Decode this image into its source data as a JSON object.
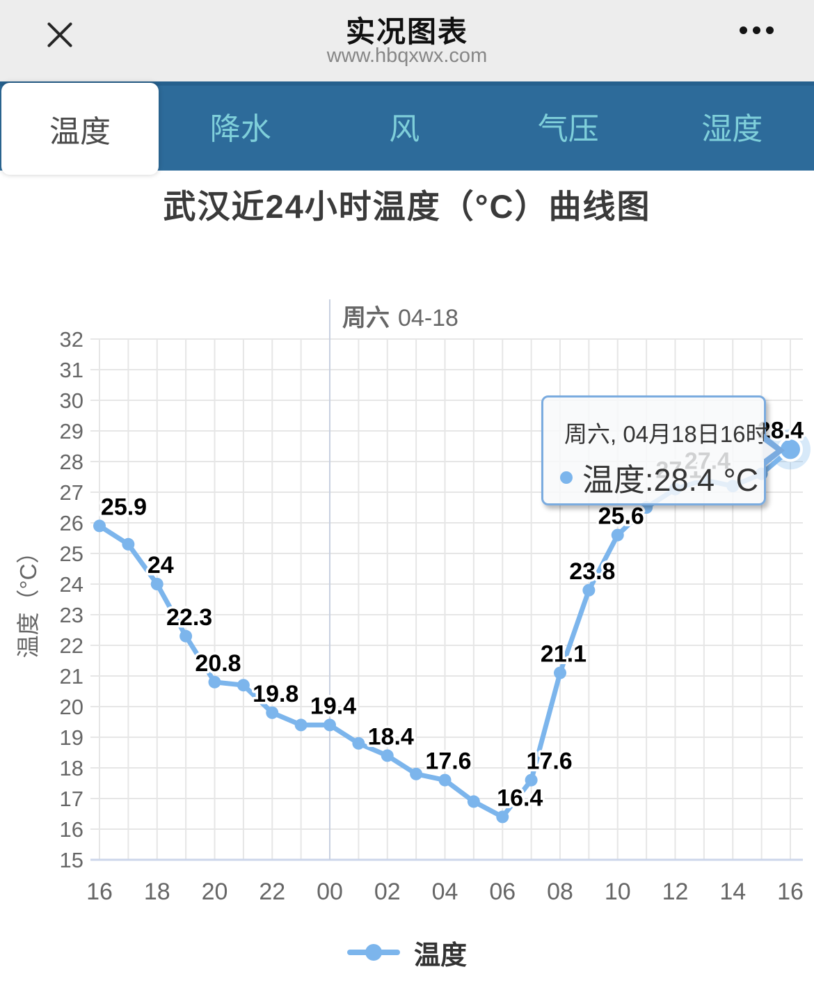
{
  "header": {
    "title": "实况图表",
    "url": "www.hbqxwx.com",
    "close_icon": "x",
    "menu_icon": "•••"
  },
  "tabs": [
    {
      "label": "温度",
      "active": true
    },
    {
      "label": "降水",
      "active": false
    },
    {
      "label": "风",
      "active": false
    },
    {
      "label": "气压",
      "active": false
    },
    {
      "label": "湿度",
      "active": false
    }
  ],
  "chart_title": "武汉近24小时温度（°C）曲线图",
  "chart_data": {
    "type": "line",
    "title": "武汉近24小时温度（°C）曲线图",
    "xlabel": "",
    "ylabel": "温度（°C）",
    "ylim": [
      15,
      32
    ],
    "y_tick_step": 1,
    "x": [
      "16",
      "17",
      "18",
      "19",
      "20",
      "21",
      "22",
      "23",
      "00",
      "01",
      "02",
      "03",
      "04",
      "05",
      "06",
      "07",
      "08",
      "09",
      "10",
      "11",
      "12",
      "13",
      "14",
      "15",
      "16"
    ],
    "x_tick_every": 2,
    "grid": true,
    "legend_position": "bottom",
    "series": [
      {
        "name": "温度",
        "color": "#7cb5ec",
        "values": [
          25.9,
          25.3,
          24,
          22.3,
          20.8,
          20.7,
          19.8,
          19.4,
          19.4,
          18.8,
          18.4,
          17.8,
          17.6,
          16.9,
          16.4,
          17.6,
          21.1,
          23.8,
          25.6,
          26.5,
          27.1,
          27.4,
          27.2,
          27.6,
          28.4
        ]
      }
    ],
    "point_labels": [
      "25.9",
      null,
      "24",
      "22.3",
      "20.8",
      null,
      "19.8",
      null,
      "19.4",
      null,
      "18.4",
      null,
      "17.6",
      null,
      "16.4",
      "17.6",
      "21.1",
      "23.8",
      "25.6",
      null,
      "27.1",
      "27.4",
      null,
      null,
      "28.4"
    ],
    "day_marker": {
      "x_index": 8,
      "weekday": "周六",
      "date": "04-18"
    },
    "selected_point_index": 24
  },
  "tooltip": {
    "date_line": "周六, 04月18日16时",
    "series_line": "温度:28.4 °C"
  },
  "legend": {
    "series": "温度"
  },
  "colors": {
    "series_blue": "#7cb5ec",
    "tab_bar_blue": "#2d6b9a",
    "tab_inactive_text": "#7fcfda",
    "axis_line": "#ccd6eb",
    "grid_line": "#e6e6e6",
    "label_text": "#666666"
  }
}
